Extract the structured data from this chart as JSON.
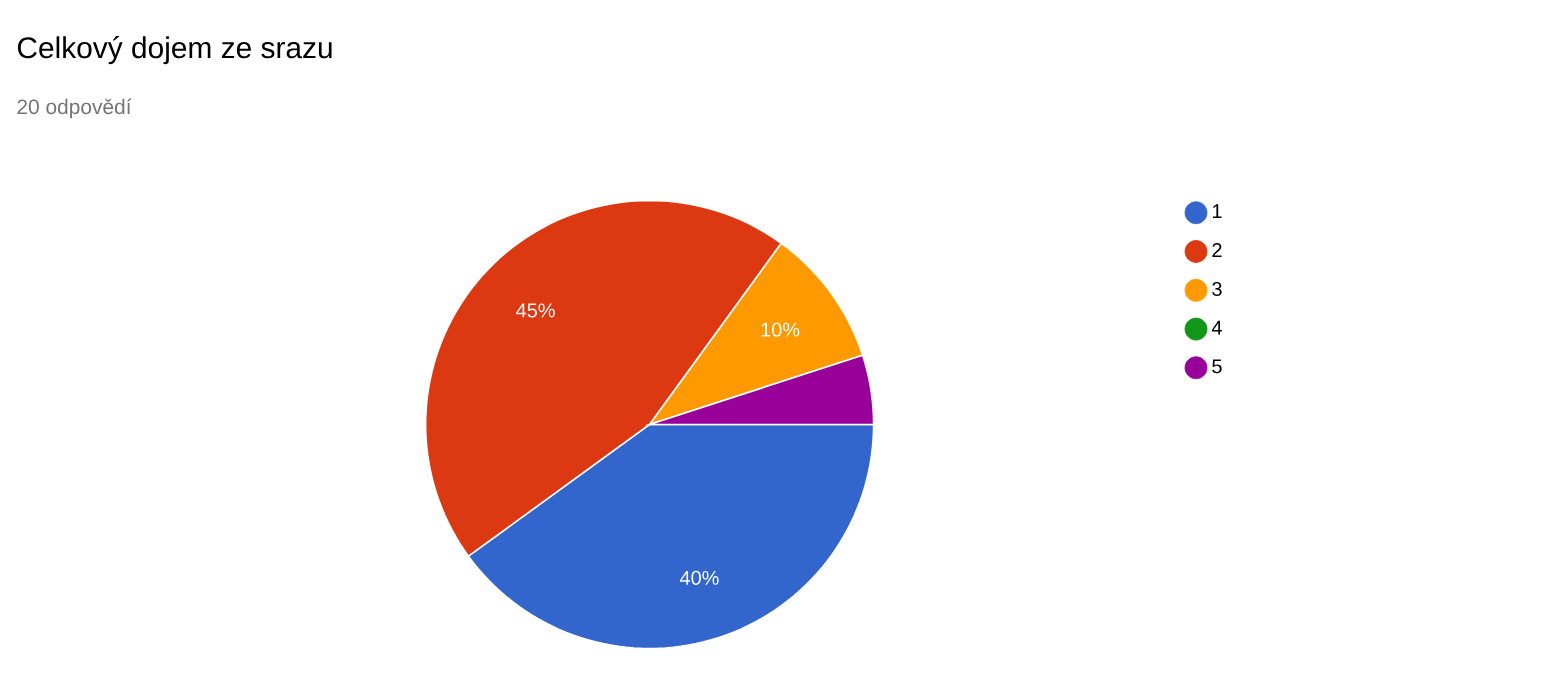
{
  "chart_data": {
    "type": "pie",
    "title": "Celkový dojem ze srazu",
    "subtitle": "20 odpovědí",
    "categories": [
      "1",
      "2",
      "3",
      "4",
      "5"
    ],
    "values": [
      40,
      45,
      10,
      0,
      5
    ],
    "value_labels": [
      "40%",
      "45%",
      "10%",
      null,
      null
    ],
    "colors": [
      "#3366cc",
      "#dc3912",
      "#ff9900",
      "#109618",
      "#990099"
    ],
    "legend": "right"
  }
}
